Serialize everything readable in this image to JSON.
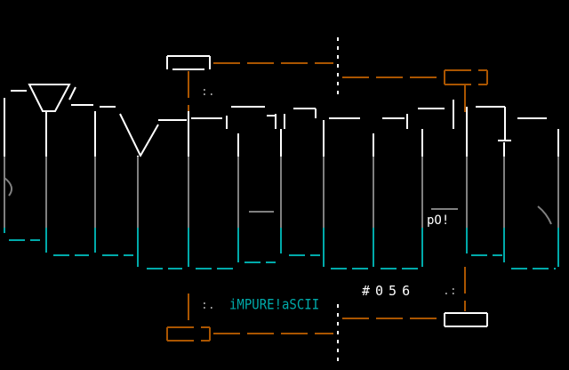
{
  "art": {
    "group_name": "iMPURE!aSCII",
    "issue_number": "#056",
    "signature": "pO!",
    "colors": {
      "background": "#000000",
      "top": "#ffffff",
      "middle": "#808080",
      "bottom": "#00aaaa",
      "accent": "#aa5500",
      "dots": "#aaaaaa"
    }
  }
}
